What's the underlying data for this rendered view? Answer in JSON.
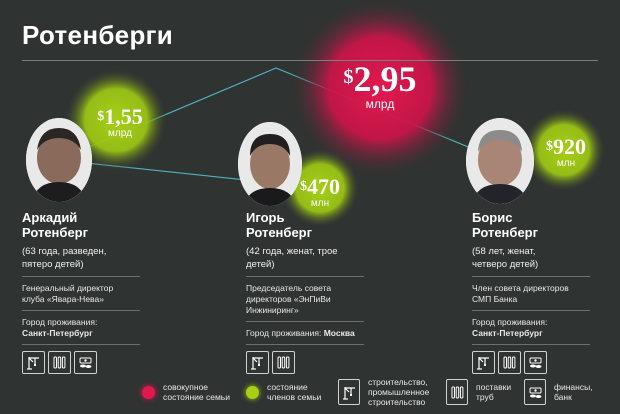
{
  "title": "Ротенберги",
  "colors": {
    "background": "#2f3331",
    "family_total": "#e3184f",
    "member": "#a6cf16"
  },
  "family_total": {
    "currency": "$",
    "amount": "2,95",
    "unit": "млрд"
  },
  "people": [
    {
      "wealth": {
        "currency": "$",
        "amount": "1,55",
        "unit": "млрд"
      },
      "name_line1": "Аркадий",
      "name_line2": "Ротенберг",
      "details": "(63 года, разведен, пятеро детей)",
      "position": "Генеральный директор клуба «Явара-Нева»",
      "city_label": "Город проживания:",
      "city": "Санкт-Петербург",
      "icons": [
        "construction-icon",
        "pipes-icon",
        "finance-icon"
      ]
    },
    {
      "wealth": {
        "currency": "$",
        "amount": "470",
        "unit": "млн"
      },
      "name_line1": "Игорь",
      "name_line2": "Ротенберг",
      "details": "(42 года, женат, трое детей)",
      "position": "Председатель совета директоров «ЭнПиВи Инжиниринг»",
      "city_label": "Город проживания:",
      "city": "Москва",
      "icons": [
        "construction-icon",
        "pipes-icon",
        "finance-icon"
      ]
    },
    {
      "wealth": {
        "currency": "$",
        "amount": "920",
        "unit": "млн"
      },
      "name_line1": "Борис",
      "name_line2": "Ротенберг",
      "details": "(58 лет, женат, четверо детей)",
      "position": "Член совета директоров СМП Банка",
      "city_label": "Город проживания:",
      "city": "Санкт-Петербург",
      "icons": [
        "construction-icon",
        "pipes-icon",
        "finance-icon"
      ]
    }
  ],
  "legend": [
    {
      "icon": "red-circle",
      "line1": "совокупное",
      "line2": "состояние семьи"
    },
    {
      "icon": "green-circle",
      "line1": "состояние",
      "line2": "членов семьи"
    },
    {
      "icon": "construction-icon",
      "line1": "строительство,",
      "line2": "промышленное строительство"
    },
    {
      "icon": "pipes-icon",
      "line1": "поставки",
      "line2": "труб"
    },
    {
      "icon": "finance-icon",
      "line1": "финансы,",
      "line2": "банк"
    }
  ]
}
